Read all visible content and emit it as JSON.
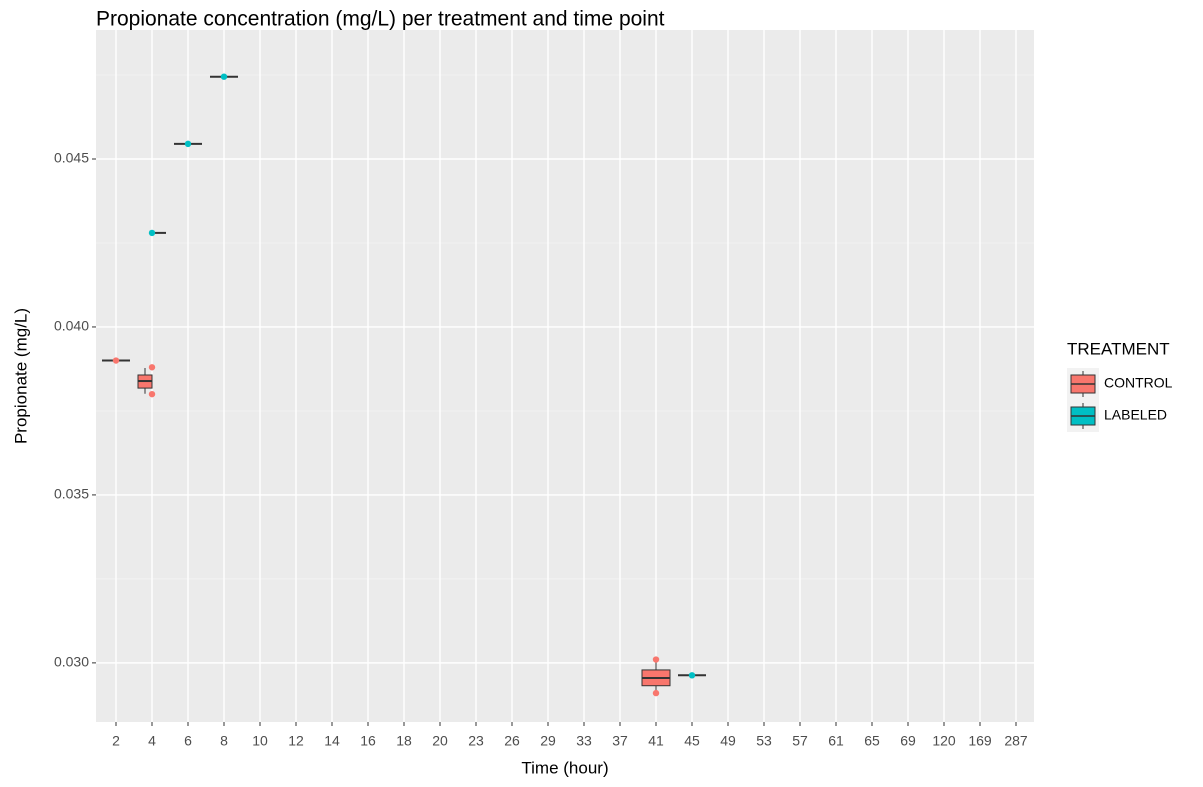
{
  "chart_data": {
    "type": "boxplot",
    "title": "Propionate concentration (mg/L) per treatment and time point",
    "x_label": "Time (hour)",
    "y_label": "Propionate (mg/L)",
    "legend_title": "TREATMENT",
    "legend_position": "right",
    "categories": [
      "2",
      "4",
      "6",
      "8",
      "10",
      "12",
      "14",
      "16",
      "18",
      "20",
      "23",
      "26",
      "29",
      "33",
      "37",
      "41",
      "45",
      "49",
      "53",
      "57",
      "61",
      "65",
      "69",
      "120",
      "169",
      "287"
    ],
    "ylim": [
      0.02824,
      0.04884
    ],
    "yticks": [
      {
        "value": 0.03,
        "label": "0.030"
      },
      0.035,
      {
        "value": 0.04,
        "label": "0.040"
      },
      0.045
    ],
    "grid": true,
    "minor_grid": true,
    "series": [
      {
        "name": "CONTROL",
        "color": "#f8766d",
        "boxes": [
          {
            "category": "2",
            "min": 0.039,
            "q1": 0.039,
            "median": 0.039,
            "q3": 0.039,
            "max": 0.039
          },
          {
            "category": "4",
            "min": 0.03801,
            "q1": 0.03818,
            "median": 0.03839,
            "q3": 0.03857,
            "max": 0.03878
          },
          {
            "category": "41",
            "min": 0.02914,
            "q1": 0.02932,
            "median": 0.02955,
            "q3": 0.02979,
            "max": 0.03006
          }
        ],
        "points": [
          {
            "category": "2",
            "value": 0.039
          },
          {
            "category": "4",
            "value": 0.0388
          },
          {
            "category": "4",
            "value": 0.038
          },
          {
            "category": "41",
            "value": 0.0301
          },
          {
            "category": "41",
            "value": 0.0291
          }
        ]
      },
      {
        "name": "LABELED",
        "color": "#00bfc4",
        "boxes": [
          {
            "category": "4",
            "min": 0.0428,
            "q1": 0.0428,
            "median": 0.0428,
            "q3": 0.0428,
            "max": 0.0428
          },
          {
            "category": "6",
            "min": 0.04545,
            "q1": 0.04545,
            "median": 0.04545,
            "q3": 0.04545,
            "max": 0.04545
          },
          {
            "category": "8",
            "min": 0.04745,
            "q1": 0.04745,
            "median": 0.04745,
            "q3": 0.04745,
            "max": 0.04745
          },
          {
            "category": "45",
            "min": 0.02963,
            "q1": 0.02963,
            "median": 0.02963,
            "q3": 0.02963,
            "max": 0.02963
          }
        ],
        "points": [
          {
            "category": "4",
            "value": 0.0428
          },
          {
            "category": "6",
            "value": 0.04545
          },
          {
            "category": "8",
            "value": 0.04745
          },
          {
            "category": "45",
            "value": 0.02963
          }
        ]
      }
    ]
  }
}
